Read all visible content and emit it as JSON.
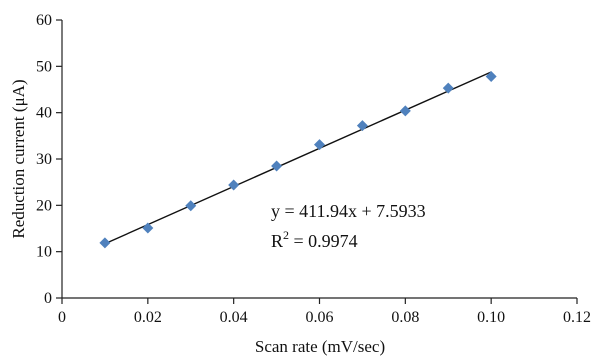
{
  "chart_data": {
    "type": "scatter",
    "x": [
      0.01,
      0.02,
      0.03,
      0.04,
      0.05,
      0.06,
      0.07,
      0.08,
      0.09,
      0.1
    ],
    "y": [
      11.9,
      15.1,
      19.9,
      24.4,
      28.5,
      33.1,
      37.2,
      40.4,
      45.3,
      47.8
    ],
    "xlabel": "Scan rate (mV/sec)",
    "ylabel": "Reduction current (μA)",
    "xlim": [
      0,
      0.12
    ],
    "ylim": [
      0,
      60
    ],
    "xticks": [
      0,
      0.02,
      0.04,
      0.06,
      0.08,
      0.1,
      0.12
    ],
    "xtick_labels": [
      "0",
      "0.02",
      "0.04",
      "0.06",
      "0.08",
      "0.10",
      "0.12"
    ],
    "yticks": [
      0,
      10,
      20,
      30,
      40,
      50,
      60
    ],
    "ytick_labels": [
      "0",
      "10",
      "20",
      "30",
      "40",
      "50",
      "60"
    ],
    "grid": false,
    "marker": "diamond",
    "marker_color": "#4f81bd",
    "trendline": {
      "slope": 411.94,
      "intercept": 7.5933,
      "x_range": [
        0.01,
        0.1
      ],
      "equation": "y = 411.94x + 7.5933",
      "r2_prefix": "R",
      "r2_exp": "2",
      "r2_value": " = 0.9974"
    }
  }
}
